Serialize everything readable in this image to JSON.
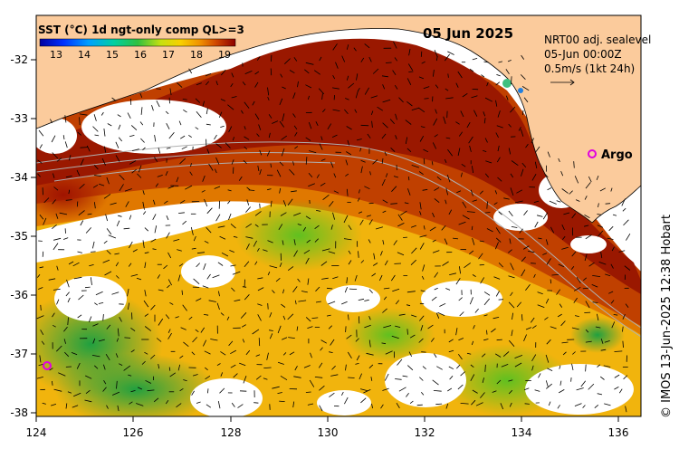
{
  "map": {
    "date": "05 Jun 2025",
    "sst_title": "SST (°C) 1d ngt-only comp QL>=3",
    "current_info": [
      "NRT00 adj. sealevel",
      "05-Jun 00:00Z",
      "0.5m/s (1kt 24h)"
    ],
    "argo_label": "Argo",
    "credit": "© IMOS 13-Jun-2025 12:38 Hobart",
    "colorbar_ticks": [
      "13",
      "14",
      "15",
      "16",
      "17",
      "18",
      "19"
    ],
    "x_ticks": [
      "124",
      "126",
      "128",
      "130",
      "132",
      "134",
      "136"
    ],
    "y_ticks": [
      "-32",
      "-33",
      "-34",
      "-35",
      "-36",
      "-37",
      "-38"
    ],
    "colors": {
      "land": "#FBCB9C",
      "no_data": "#FFFFFF",
      "warm_sst": "#A01800",
      "argo_marker": "#E000E0"
    }
  }
}
